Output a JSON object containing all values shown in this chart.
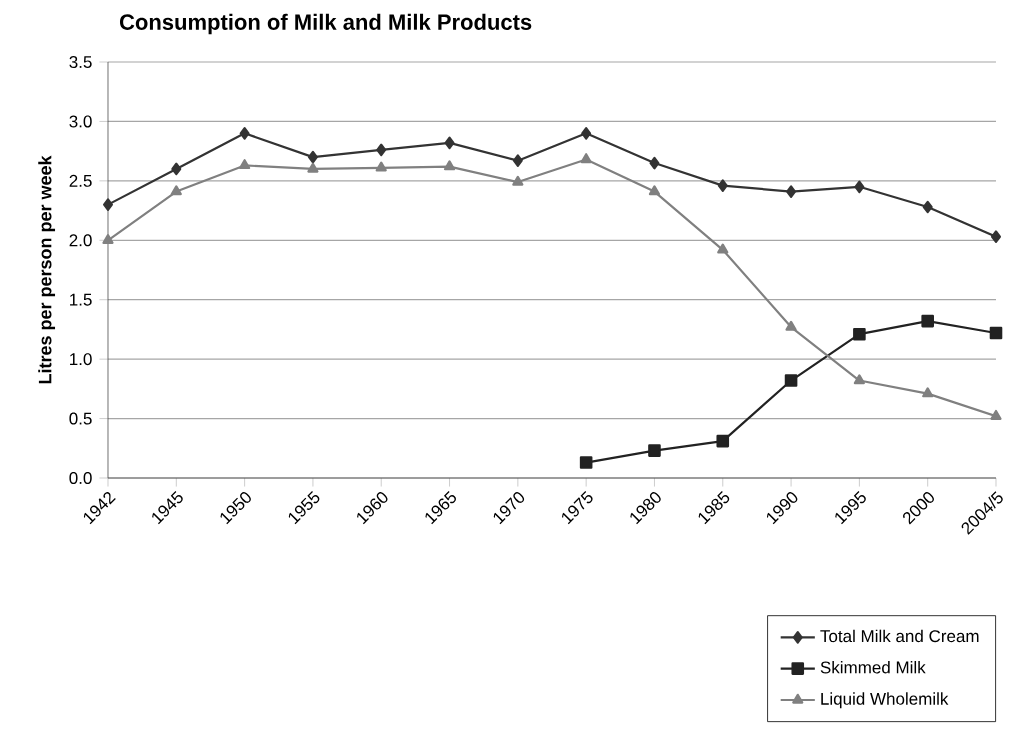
{
  "chart_data": {
    "type": "line",
    "title": "Consumption of Milk and Milk Products",
    "ylabel": "Litres per person per week",
    "categories": [
      "1942",
      "1945",
      "1950",
      "1955",
      "1960",
      "1965",
      "1970",
      "1975",
      "1980",
      "1985",
      "1990",
      "1995",
      "2000",
      "2004/5"
    ],
    "series": [
      {
        "name": "Total Milk and Cream",
        "color": "#333333",
        "marker": "diamond",
        "values": [
          2.3,
          2.6,
          2.9,
          2.7,
          2.76,
          2.82,
          2.67,
          2.9,
          2.65,
          2.46,
          2.41,
          2.45,
          2.28,
          2.03
        ]
      },
      {
        "name": "Skimmed Milk",
        "color": "#222222",
        "marker": "square",
        "values": [
          null,
          null,
          null,
          null,
          null,
          null,
          null,
          0.13,
          0.23,
          0.31,
          0.82,
          1.21,
          1.32,
          1.22
        ]
      },
      {
        "name": "Liquid Wholemilk",
        "color": "#808080",
        "marker": "triangle",
        "values": [
          2.0,
          2.41,
          2.63,
          2.6,
          2.61,
          2.62,
          2.49,
          2.68,
          2.41,
          1.92,
          1.27,
          0.82,
          0.71,
          0.52
        ]
      }
    ],
    "ylim": [
      0,
      3.5
    ],
    "yticks": [
      {
        "value": 0,
        "label": "0.0"
      },
      {
        "value": 0.5,
        "label": "0.5"
      },
      {
        "value": 1,
        "label": "1.0"
      },
      {
        "value": 1.5,
        "label": "1.5"
      },
      {
        "value": 2,
        "label": "2.0"
      },
      {
        "value": 2.5,
        "label": "2.5"
      },
      {
        "value": 3,
        "label": "3.0"
      },
      {
        "value": 3.5,
        "label": "3.5"
      }
    ],
    "grid": "y",
    "legend": "bottom right",
    "line_style": "solid"
  }
}
